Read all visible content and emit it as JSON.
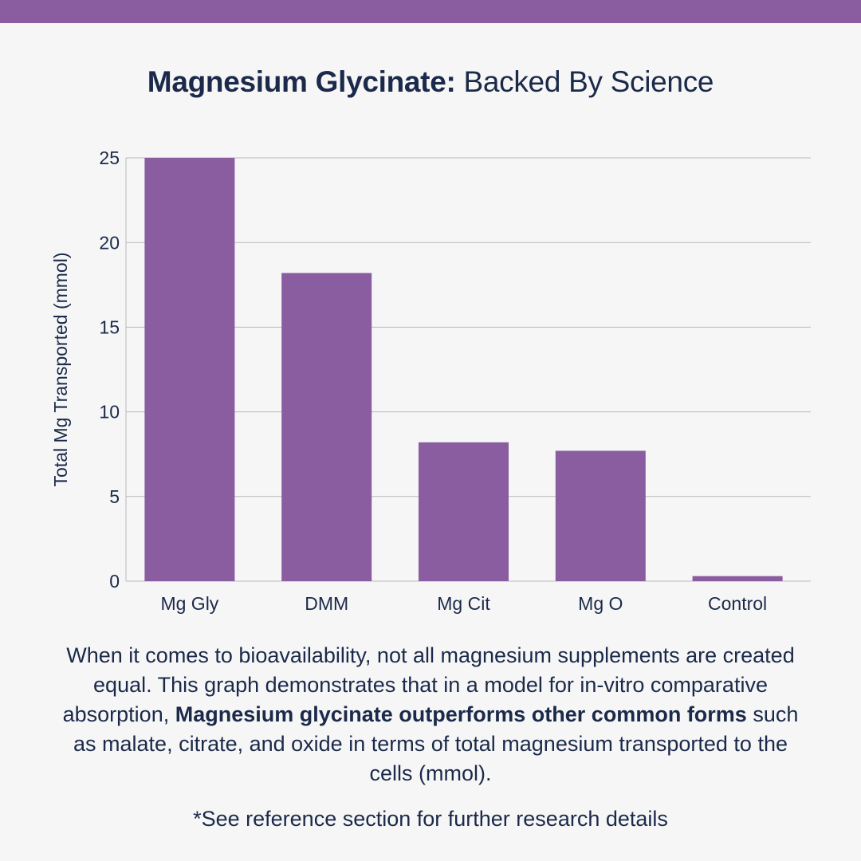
{
  "colors": {
    "accent": "#8a5ca0",
    "text": "#1b2a4a",
    "background": "#f6f6f6",
    "grid": "#b9b9b9"
  },
  "title": {
    "bold": "Magnesium Glycinate:",
    "regular": " Backed By Science"
  },
  "chart_data": {
    "type": "bar",
    "categories": [
      "Mg Gly",
      "DMM",
      "Mg Cit",
      "Mg O",
      "Control"
    ],
    "values": [
      25,
      18.2,
      8.2,
      7.7,
      0.3
    ],
    "ylabel": "Total Mg Transported (mmol)",
    "xlabel": "",
    "ylim": [
      0,
      25
    ],
    "yticks": [
      0,
      5,
      10,
      15,
      20,
      25
    ],
    "grid": true,
    "legend": "none"
  },
  "description": {
    "part1": "When it comes to bioavailability, not all magnesium supplements are created equal. This graph demonstrates that in a model for in-vitro comparative absorption, ",
    "bold": "Magnesium glycinate outperforms other common forms",
    "part2": " such as malate, citrate, and oxide in terms of total magnesium transported to the cells (mmol)."
  },
  "footnote": "*See reference section for further research details"
}
